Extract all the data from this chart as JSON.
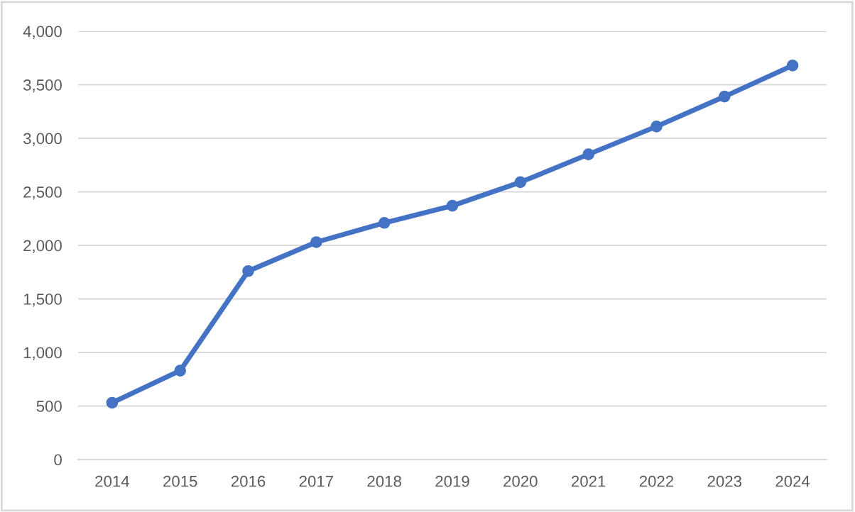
{
  "chart_data": {
    "type": "line",
    "categories": [
      "2014",
      "2015",
      "2016",
      "2017",
      "2018",
      "2019",
      "2020",
      "2021",
      "2022",
      "2023",
      "2024"
    ],
    "series": [
      {
        "color": "#4472c4",
        "values": [
          530,
          830,
          1760,
          2030,
          2210,
          2370,
          2590,
          2850,
          3110,
          3390,
          3680
        ]
      }
    ],
    "ylim": [
      0,
      4000
    ],
    "yticks": [
      {
        "value": 0,
        "label": "0"
      },
      {
        "value": 500,
        "label": "500"
      },
      {
        "value": 1000,
        "label": "1,000"
      },
      {
        "value": 1500,
        "label": "1,500"
      },
      {
        "value": 2000,
        "label": "2,000"
      },
      {
        "value": 2500,
        "label": "2,500"
      },
      {
        "value": 3000,
        "label": "3,000"
      },
      {
        "value": 3500,
        "label": "3,500"
      },
      {
        "value": 4000,
        "label": "4,000"
      }
    ],
    "grid": "y",
    "marker": "circle",
    "line_style": "solid",
    "legend": false
  }
}
